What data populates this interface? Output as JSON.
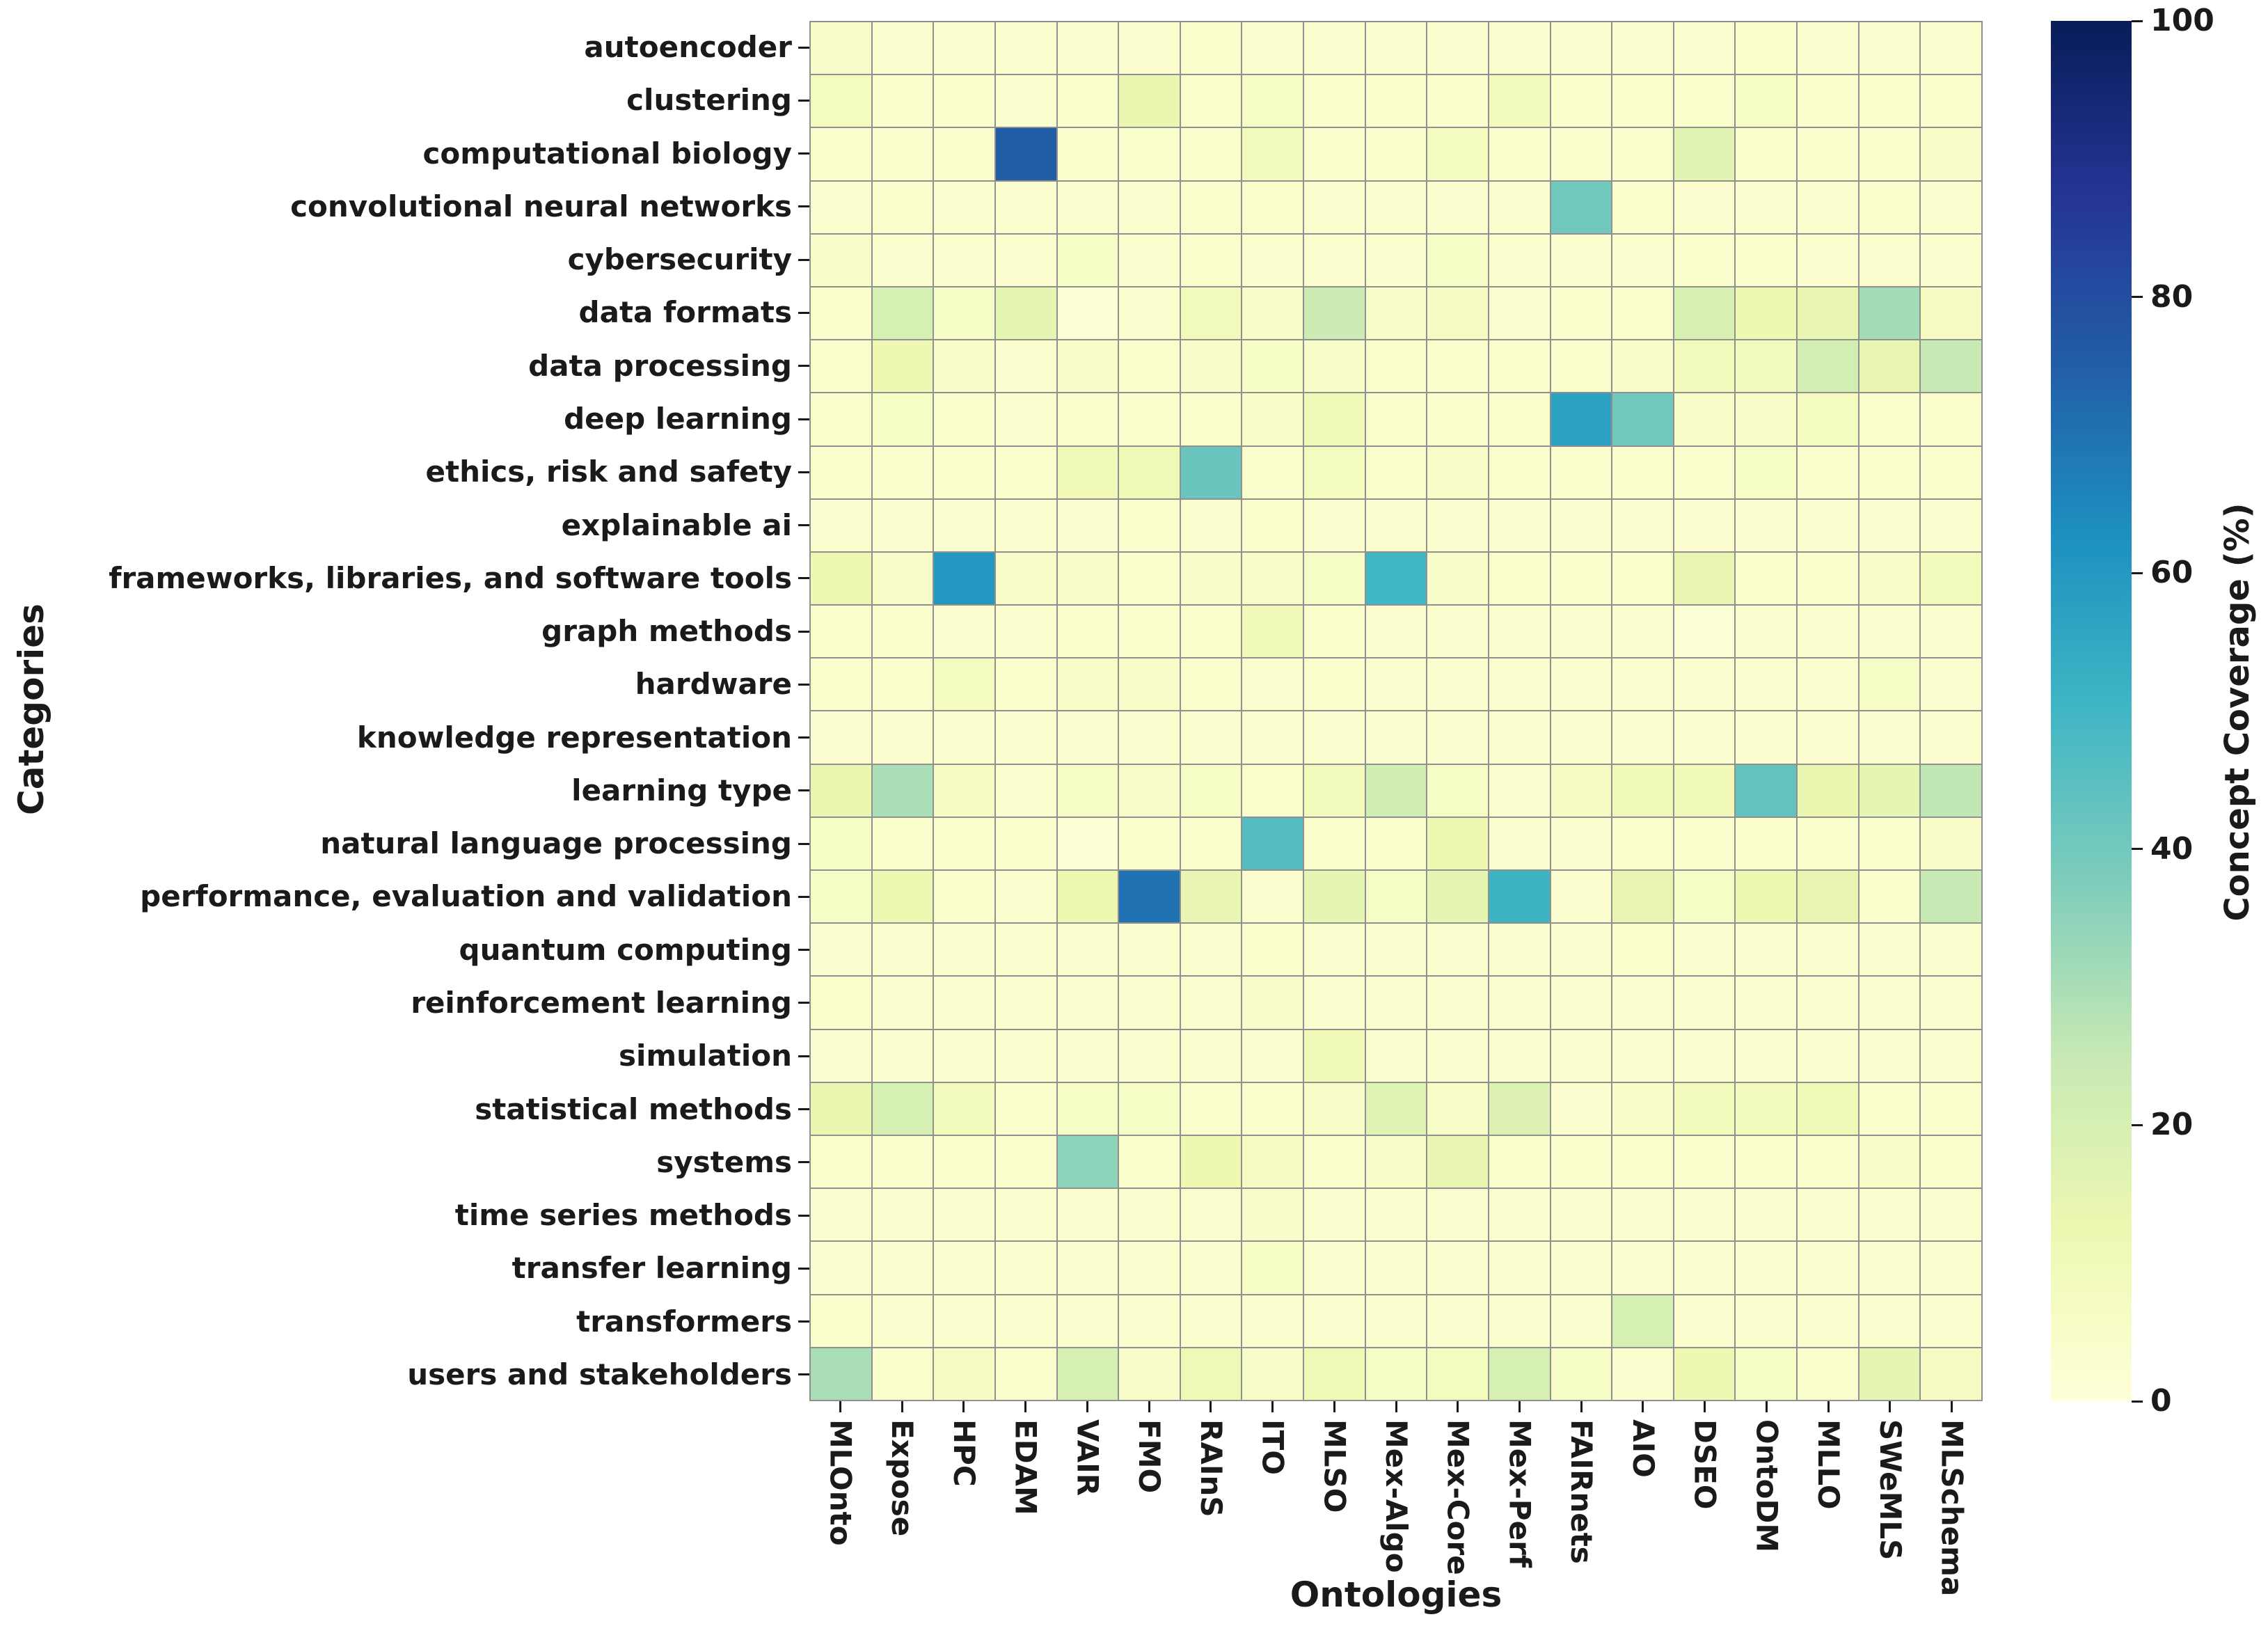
{
  "chart_data": {
    "type": "heatmap",
    "xlabel": "Ontologies",
    "ylabel": "Categories",
    "colorbar": {
      "label": "Concept Coverage (%)",
      "min": 0,
      "max": 100,
      "ticks": [
        100,
        80,
        60,
        40,
        20,
        0
      ]
    },
    "colormap": "YlGnBu",
    "colormap_stops": [
      "#ffffd9",
      "#edf8b1",
      "#c7e9b4",
      "#7fcdbb",
      "#41b6c4",
      "#1d91c0",
      "#225ea8",
      "#253494",
      "#081d58"
    ],
    "gridline_color": "#909090",
    "columns": [
      "MLOnto",
      "Expose",
      "HPC",
      "EDAM",
      "VAIR",
      "FMO",
      "RAInS",
      "ITO",
      "MLSO",
      "Mex-Algo",
      "Mex-Core",
      "Mex-Perf",
      "FAIRnets",
      "AIO",
      "DSEO",
      "OntoDM",
      "MLLO",
      "SWeMLS",
      "MLSchema"
    ],
    "rows": [
      "autoencoder",
      "clustering",
      "computational biology",
      "convolutional neural networks",
      "cybersecurity",
      "data formats",
      "data processing",
      "deep learning",
      "ethics, risk and safety",
      "explainable ai",
      "frameworks, libraries, and software tools",
      "graph methods",
      "hardware",
      "knowledge representation",
      "learning type",
      "natural language processing",
      "performance, evaluation and validation",
      "quantum computing",
      "reinforcement learning",
      "simulation",
      "statistical methods",
      "systems",
      "time series methods",
      "transfer learning",
      "transformers",
      "users and stakeholders"
    ],
    "values": [
      [
        5,
        3,
        3,
        3,
        3,
        3,
        4,
        3,
        3,
        3,
        3,
        3,
        3,
        3,
        3,
        4,
        3,
        3,
        3
      ],
      [
        8,
        4,
        4,
        3,
        4,
        13,
        4,
        6,
        4,
        4,
        4,
        9,
        4,
        4,
        4,
        6,
        4,
        4,
        4
      ],
      [
        4,
        4,
        4,
        75,
        4,
        4,
        4,
        9,
        4,
        4,
        8,
        4,
        4,
        4,
        16,
        4,
        4,
        4,
        5
      ],
      [
        3,
        4,
        3,
        3,
        3,
        3,
        4,
        4,
        3,
        3,
        3,
        3,
        40,
        4,
        3,
        3,
        3,
        4,
        3
      ],
      [
        5,
        3,
        3,
        3,
        6,
        3,
        4,
        3,
        3,
        3,
        6,
        3,
        3,
        3,
        4,
        4,
        3,
        3,
        3
      ],
      [
        4,
        20,
        6,
        15,
        2,
        3,
        9,
        5,
        23,
        5,
        7,
        3,
        4,
        4,
        19,
        12,
        14,
        31,
        7
      ],
      [
        4,
        12,
        5,
        3,
        5,
        4,
        5,
        6,
        5,
        4,
        4,
        4,
        4,
        5,
        9,
        9,
        21,
        14,
        25
      ],
      [
        4,
        6,
        4,
        3,
        4,
        4,
        4,
        5,
        10,
        4,
        4,
        4,
        57,
        40,
        5,
        5,
        8,
        4,
        4
      ],
      [
        4,
        4,
        4,
        4,
        10,
        11,
        42,
        4,
        8,
        4,
        5,
        4,
        4,
        4,
        4,
        6,
        4,
        4,
        4
      ],
      [
        3,
        3,
        3,
        3,
        3,
        4,
        3,
        4,
        3,
        3,
        3,
        3,
        3,
        3,
        3,
        3,
        3,
        3,
        3
      ],
      [
        12,
        5,
        60,
        5,
        5,
        4,
        5,
        5,
        6,
        50,
        5,
        4,
        4,
        4,
        14,
        4,
        4,
        5,
        9
      ],
      [
        4,
        4,
        3,
        3,
        4,
        4,
        4,
        10,
        4,
        3,
        3,
        3,
        3,
        3,
        2,
        3,
        3,
        3,
        3
      ],
      [
        4,
        4,
        8,
        4,
        5,
        5,
        4,
        3,
        4,
        3,
        3,
        3,
        3,
        3,
        3,
        3,
        3,
        6,
        3
      ],
      [
        3,
        3,
        3,
        3,
        3,
        3,
        3,
        3,
        3,
        3,
        3,
        3,
        3,
        3,
        3,
        3,
        3,
        3,
        3
      ],
      [
        13,
        30,
        7,
        3,
        6,
        5,
        6,
        4,
        9,
        22,
        6,
        3,
        7,
        10,
        10,
        43,
        13,
        15,
        26
      ],
      [
        6,
        4,
        4,
        4,
        2,
        4,
        4,
        46,
        4,
        4,
        12,
        3,
        3,
        4,
        4,
        4,
        4,
        4,
        5
      ],
      [
        6,
        12,
        4,
        3,
        12,
        70,
        14,
        3,
        15,
        6,
        15,
        51,
        3,
        14,
        6,
        12,
        14,
        4,
        25
      ],
      [
        3,
        3,
        3,
        3,
        3,
        3,
        3,
        4,
        3,
        3,
        3,
        3,
        3,
        4,
        3,
        3,
        3,
        3,
        3
      ],
      [
        4,
        3,
        3,
        3,
        3,
        3,
        3,
        5,
        3,
        3,
        3,
        3,
        3,
        3,
        3,
        3,
        3,
        3,
        3
      ],
      [
        3,
        3,
        3,
        3,
        3,
        3,
        3,
        3,
        10,
        3,
        3,
        3,
        3,
        3,
        3,
        3,
        3,
        3,
        3
      ],
      [
        13,
        20,
        9,
        4,
        6,
        6,
        4,
        4,
        5,
        17,
        5,
        18,
        3,
        5,
        9,
        9,
        11,
        4,
        4
      ],
      [
        4,
        4,
        4,
        4,
        35,
        4,
        12,
        7,
        4,
        5,
        14,
        4,
        4,
        4,
        4,
        4,
        4,
        5,
        4
      ],
      [
        3,
        3,
        3,
        3,
        3,
        3,
        3,
        5,
        3,
        3,
        3,
        3,
        3,
        3,
        3,
        3,
        3,
        3,
        3
      ],
      [
        3,
        3,
        3,
        3,
        3,
        3,
        3,
        6,
        3,
        3,
        3,
        3,
        3,
        3,
        3,
        3,
        3,
        3,
        3
      ],
      [
        4,
        3,
        3,
        3,
        3,
        3,
        3,
        3,
        3,
        3,
        3,
        3,
        3,
        20,
        3,
        3,
        3,
        3,
        3
      ],
      [
        30,
        4,
        7,
        4,
        20,
        5,
        11,
        5,
        11,
        6,
        8,
        20,
        6,
        3,
        12,
        6,
        4,
        15,
        7
      ]
    ]
  }
}
